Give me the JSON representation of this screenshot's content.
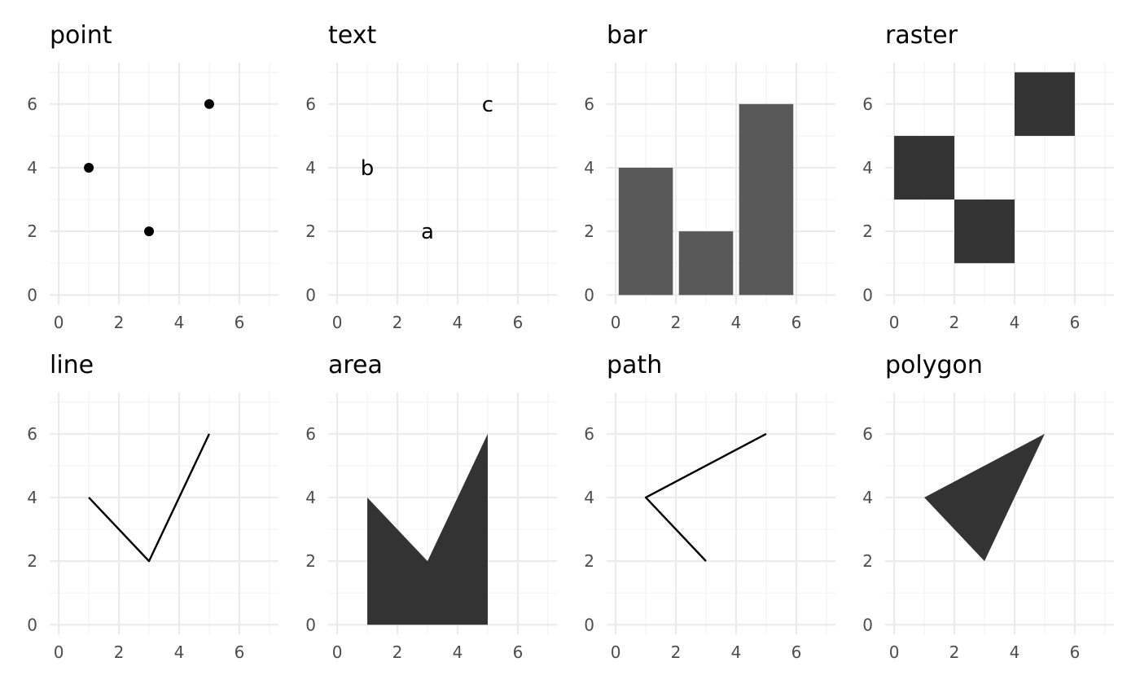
{
  "colors": {
    "background": "#ffffff",
    "grid_major": "#ebebeb",
    "grid_minor": "#f3f3f3",
    "bar_fill": "#595959",
    "dark_fill": "#333333",
    "ink": "#000000",
    "tick_text": "#4d4d4d"
  },
  "chart_data": [
    {
      "title": "point",
      "type": "scatter",
      "xlim": [
        -0.3,
        7.3
      ],
      "ylim": [
        -0.3,
        7.3
      ],
      "xticks": [
        "0",
        "2",
        "4",
        "6"
      ],
      "yticks": [
        "0",
        "2",
        "4",
        "6"
      ],
      "x": [
        1,
        3,
        5
      ],
      "y": [
        4,
        2,
        6
      ]
    },
    {
      "title": "text",
      "type": "text",
      "xlim": [
        -0.3,
        7.3
      ],
      "ylim": [
        -0.3,
        7.3
      ],
      "xticks": [
        "0",
        "2",
        "4",
        "6"
      ],
      "yticks": [
        "0",
        "2",
        "4",
        "6"
      ],
      "x": [
        3,
        1,
        5
      ],
      "y": [
        2,
        4,
        6
      ],
      "labels": [
        "a",
        "b",
        "c"
      ]
    },
    {
      "title": "bar",
      "type": "bar",
      "xlim": [
        -0.3,
        7.3
      ],
      "ylim": [
        -0.3,
        7.3
      ],
      "xticks": [
        "0",
        "2",
        "4",
        "6"
      ],
      "yticks": [
        "0",
        "2",
        "4",
        "6"
      ],
      "x": [
        1,
        3,
        5
      ],
      "values": [
        4,
        2,
        6
      ],
      "bar_width": 1.8
    },
    {
      "title": "raster",
      "type": "heatmap",
      "xlim": [
        -0.3,
        7.3
      ],
      "ylim": [
        -0.3,
        7.3
      ],
      "xticks": [
        "0",
        "2",
        "4",
        "6"
      ],
      "yticks": [
        "0",
        "2",
        "4",
        "6"
      ],
      "x": [
        1,
        3,
        5
      ],
      "y": [
        4,
        2,
        6
      ],
      "tile_width": 2,
      "tile_height": 2
    },
    {
      "title": "line",
      "type": "line",
      "xlim": [
        -0.3,
        7.3
      ],
      "ylim": [
        -0.3,
        7.3
      ],
      "xticks": [
        "0",
        "2",
        "4",
        "6"
      ],
      "yticks": [
        "0",
        "2",
        "4",
        "6"
      ],
      "x": [
        1,
        3,
        5
      ],
      "y": [
        4,
        2,
        6
      ]
    },
    {
      "title": "area",
      "type": "area",
      "xlim": [
        -0.3,
        7.3
      ],
      "ylim": [
        -0.3,
        7.3
      ],
      "xticks": [
        "0",
        "2",
        "4",
        "6"
      ],
      "yticks": [
        "0",
        "2",
        "4",
        "6"
      ],
      "x": [
        1,
        3,
        5
      ],
      "y": [
        4,
        2,
        6
      ]
    },
    {
      "title": "path",
      "type": "line",
      "xlim": [
        -0.3,
        7.3
      ],
      "ylim": [
        -0.3,
        7.3
      ],
      "xticks": [
        "0",
        "2",
        "4",
        "6"
      ],
      "yticks": [
        "0",
        "2",
        "4",
        "6"
      ],
      "x": [
        3,
        1,
        5
      ],
      "y": [
        2,
        4,
        6
      ]
    },
    {
      "title": "polygon",
      "type": "polygon",
      "xlim": [
        -0.3,
        7.3
      ],
      "ylim": [
        -0.3,
        7.3
      ],
      "xticks": [
        "0",
        "2",
        "4",
        "6"
      ],
      "yticks": [
        "0",
        "2",
        "4",
        "6"
      ],
      "x": [
        3,
        1,
        5
      ],
      "y": [
        2,
        4,
        6
      ]
    }
  ]
}
